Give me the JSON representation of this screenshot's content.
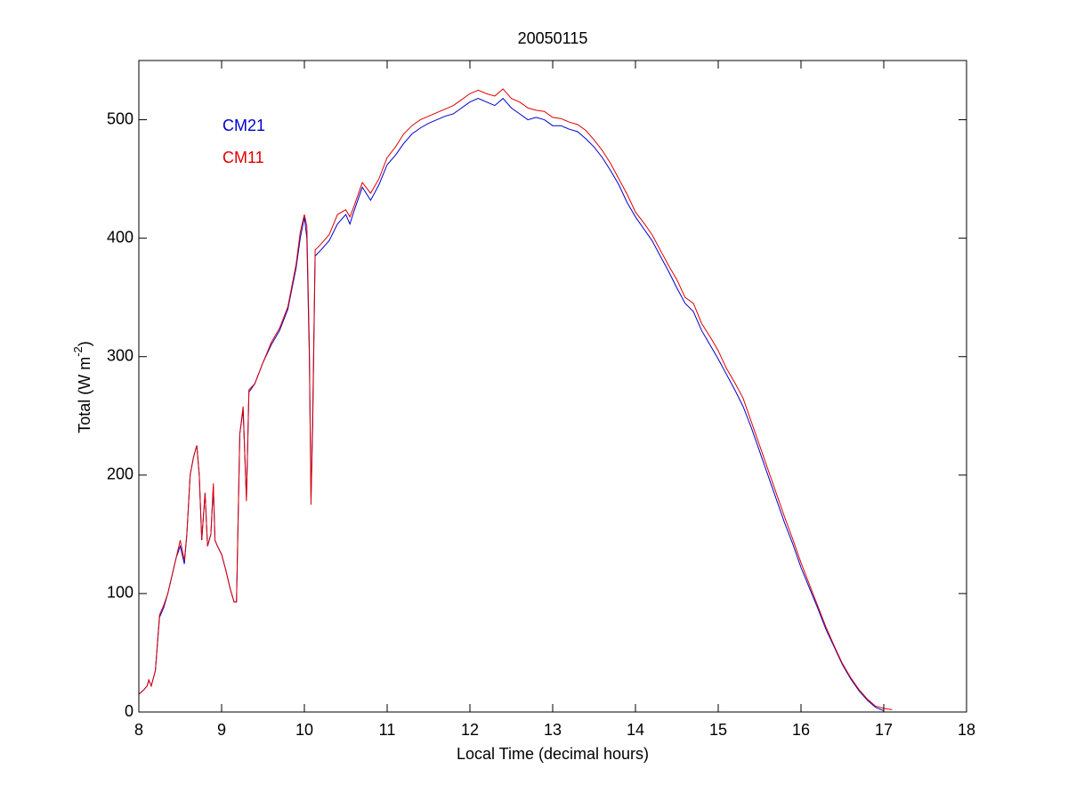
{
  "chart_data": {
    "type": "line",
    "title": "20050115",
    "xlabel": "Local Time (decimal hours)",
    "ylabel": [
      "Total (W m",
      "-2",
      ")"
    ],
    "legend": "upper left",
    "xlim": [
      8,
      18
    ],
    "xticks": [
      8,
      9,
      10,
      11,
      12,
      13,
      14,
      15,
      16,
      17,
      18
    ],
    "ylim": [
      0,
      550
    ],
    "yticks": [
      0,
      100,
      200,
      300,
      400,
      500
    ],
    "x": [
      8.0,
      8.05,
      8.1,
      8.12,
      8.15,
      8.2,
      8.25,
      8.3,
      8.35,
      8.4,
      8.45,
      8.5,
      8.55,
      8.58,
      8.62,
      8.66,
      8.7,
      8.73,
      8.76,
      8.8,
      8.83,
      8.87,
      8.9,
      8.92,
      8.95,
      9.0,
      9.05,
      9.1,
      9.15,
      9.18,
      9.22,
      9.26,
      9.3,
      9.33,
      9.4,
      9.5,
      9.6,
      9.7,
      9.8,
      9.9,
      9.95,
      10.0,
      10.03,
      10.06,
      10.08,
      10.1,
      10.13,
      10.2,
      10.3,
      10.4,
      10.5,
      10.55,
      10.6,
      10.7,
      10.8,
      10.9,
      11.0,
      11.1,
      11.2,
      11.3,
      11.4,
      11.5,
      11.6,
      11.7,
      11.8,
      11.9,
      12.0,
      12.1,
      12.2,
      12.3,
      12.4,
      12.5,
      12.6,
      12.7,
      12.8,
      12.9,
      13.0,
      13.1,
      13.2,
      13.3,
      13.4,
      13.5,
      13.6,
      13.7,
      13.8,
      13.9,
      14.0,
      14.1,
      14.2,
      14.3,
      14.4,
      14.5,
      14.6,
      14.7,
      14.8,
      14.9,
      15.0,
      15.1,
      15.2,
      15.3,
      15.4,
      15.5,
      15.6,
      15.7,
      15.8,
      15.9,
      16.0,
      16.1,
      16.2,
      16.3,
      16.4,
      16.5,
      16.6,
      16.7,
      16.8,
      16.9,
      17.0,
      17.1
    ],
    "series": [
      {
        "name": "CM21",
        "color": "#0000cc",
        "values": [
          15,
          18,
          22,
          27,
          22,
          35,
          80,
          88,
          100,
          115,
          130,
          140,
          125,
          150,
          200,
          215,
          225,
          200,
          145,
          185,
          140,
          150,
          190,
          145,
          140,
          133,
          120,
          105,
          93,
          93,
          235,
          255,
          180,
          270,
          277,
          295,
          310,
          322,
          340,
          375,
          400,
          418,
          400,
          300,
          180,
          240,
          385,
          390,
          398,
          412,
          420,
          412,
          423,
          443,
          432,
          445,
          462,
          470,
          480,
          488,
          493,
          497,
          500,
          503,
          505,
          510,
          515,
          518,
          515,
          512,
          518,
          510,
          505,
          500,
          502,
          500,
          495,
          495,
          492,
          490,
          484,
          477,
          468,
          457,
          445,
          430,
          418,
          408,
          398,
          385,
          372,
          358,
          345,
          338,
          322,
          310,
          298,
          285,
          272,
          258,
          240,
          220,
          200,
          180,
          160,
          142,
          122,
          105,
          88,
          70,
          55,
          40,
          28,
          18,
          10,
          4,
          1,
          null
        ]
      },
      {
        "name": "CM11",
        "color": "#e00000",
        "values": [
          15,
          18,
          22,
          27,
          22,
          35,
          82,
          90,
          100,
          115,
          130,
          145,
          128,
          150,
          200,
          215,
          225,
          200,
          145,
          185,
          140,
          150,
          193,
          145,
          140,
          133,
          120,
          105,
          93,
          93,
          235,
          258,
          178,
          272,
          277,
          295,
          312,
          324,
          342,
          378,
          405,
          420,
          410,
          310,
          175,
          250,
          390,
          395,
          403,
          420,
          424,
          418,
          427,
          447,
          438,
          450,
          468,
          477,
          488,
          495,
          500,
          503,
          506,
          509,
          512,
          517,
          522,
          525,
          522,
          520,
          526,
          518,
          515,
          510,
          508,
          507,
          502,
          501,
          498,
          496,
          491,
          483,
          474,
          463,
          450,
          437,
          422,
          413,
          403,
          390,
          377,
          365,
          350,
          345,
          328,
          317,
          305,
          290,
          278,
          265,
          245,
          225,
          205,
          185,
          165,
          146,
          126,
          108,
          90,
          72,
          56,
          41,
          29,
          19,
          11,
          5,
          3,
          2
        ]
      }
    ]
  }
}
